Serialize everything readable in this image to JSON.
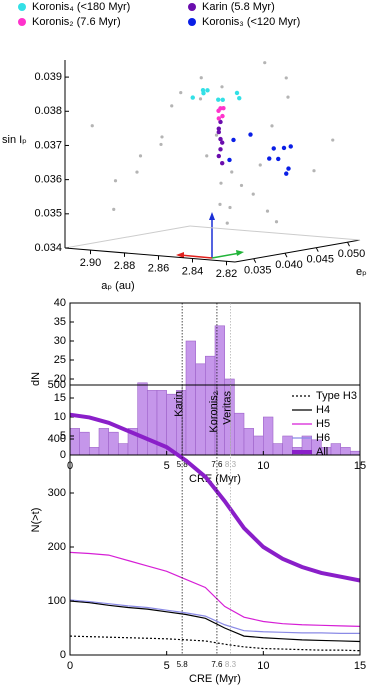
{
  "chart_data": [
    {
      "type": "scatter3d",
      "xlabel": "aₚ (au)",
      "ylabel": "eₚ",
      "zlabel": "sin Iₚ",
      "xlim": [
        2.815,
        2.915
      ],
      "ylim": [
        0.032,
        0.052
      ],
      "zlim": [
        0.034,
        0.0395
      ],
      "xticks": [
        {
          "value": 2.9,
          "label": "2.90"
        },
        2.88,
        2.86,
        2.84,
        2.82
      ],
      "yticks": [
        0.035,
        {
          "value": 0.04,
          "label": "0.040"
        },
        0.045,
        {
          "value": 0.05,
          "label": "0.050"
        }
      ],
      "zticks": [
        0.034,
        0.035,
        0.036,
        0.037,
        0.038,
        0.039
      ],
      "background": {
        "color": "#b4b4b4",
        "a": [
          2.83,
          2.85,
          2.88,
          2.9,
          2.86,
          2.84,
          2.82,
          2.87,
          2.89,
          2.91,
          2.85,
          2.83,
          2.88,
          2.86,
          2.9,
          2.84,
          2.82,
          2.87,
          2.89,
          2.91,
          2.85,
          2.83,
          2.88,
          2.86,
          2.84,
          2.9,
          2.87,
          2.82,
          2.89,
          2.85
        ],
        "e": [
          0.034,
          0.036,
          0.038,
          0.04,
          0.042,
          0.044,
          0.046,
          0.048,
          0.05,
          0.035,
          0.037,
          0.039,
          0.041,
          0.043,
          0.045,
          0.047,
          0.049,
          0.051,
          0.033,
          0.046,
          0.05,
          0.042,
          0.034,
          0.049,
          0.038,
          0.036,
          0.044,
          0.04,
          0.047,
          0.041
        ],
        "sin_i": [
          0.039,
          0.0385,
          0.0372,
          0.0365,
          0.0358,
          0.035,
          0.0362,
          0.0355,
          0.0348,
          0.0375,
          0.0368,
          0.0357,
          0.0384,
          0.0346,
          0.0378,
          0.0388,
          0.037,
          0.036,
          0.0352,
          0.0366,
          0.0381,
          0.0376,
          0.0363,
          0.0391,
          0.0353,
          0.0359,
          0.0371,
          0.0349,
          0.0386,
          0.0362
        ]
      },
      "series": [
        {
          "name": "Koronis₄ (<180 Myr)",
          "color": "#33e0e6",
          "a": [
            2.87,
            2.88,
            2.89,
            2.9,
            2.875,
            2.885,
            2.895,
            2.88
          ],
          "e": [
            0.045,
            0.047,
            0.048,
            0.05,
            0.049,
            0.046,
            0.047,
            0.05
          ],
          "sin_i": [
            0.0381,
            0.038,
            0.0382,
            0.0381,
            0.038,
            0.0382,
            0.038,
            0.0381
          ]
        },
        {
          "name": "Karin (5.8 Myr)",
          "color": "#6a0dad",
          "a": [
            2.875,
            2.876,
            2.874,
            2.875,
            2.876,
            2.874,
            2.875,
            2.876
          ],
          "e": [
            0.046,
            0.046,
            0.046,
            0.046,
            0.046,
            0.046,
            0.046,
            0.046
          ],
          "sin_i": [
            0.0374,
            0.0371,
            0.0368,
            0.0366,
            0.0364,
            0.0362,
            0.0369,
            0.0372
          ]
        },
        {
          "name": "Koronis₂ (7.6 Myr)",
          "color": "#ff33cc",
          "a": [
            2.875,
            2.878,
            2.872,
            2.876,
            2.874
          ],
          "e": [
            0.046,
            0.0465,
            0.0455,
            0.046,
            0.0462
          ],
          "sin_i": [
            0.0378,
            0.0377,
            0.0376,
            0.0375,
            0.0378
          ]
        },
        {
          "name": "Koronis₃ (<120 Myr)",
          "color": "#0a1ee6",
          "a": [
            2.83,
            2.84,
            2.85,
            2.86,
            2.835,
            2.845,
            2.855,
            2.84,
            2.83,
            2.85
          ],
          "e": [
            0.043,
            0.045,
            0.047,
            0.044,
            0.046,
            0.048,
            0.042,
            0.047,
            0.045,
            0.044
          ],
          "sin_i": [
            0.0366,
            0.0368,
            0.0364,
            0.037,
            0.0362,
            0.0367,
            0.0365,
            0.036,
            0.0369,
            0.0372
          ]
        }
      ]
    },
    {
      "type": "histogram",
      "xlabel": "CRE (Myr)",
      "ylabel": "dN",
      "color": "#c596ea",
      "edge": "#9d62c9",
      "bins": [
        0,
        0.5,
        1,
        1.5,
        2,
        2.5,
        3,
        3.5,
        4,
        4.5,
        5,
        5.5,
        6,
        6.5,
        7,
        7.5,
        8,
        8.5,
        9,
        9.5,
        10,
        10.5,
        11,
        11.5,
        12,
        12.5,
        13,
        13.5,
        14,
        14.5,
        15
      ],
      "values": [
        7,
        6,
        2,
        7,
        6,
        3,
        7,
        19,
        17,
        17,
        16,
        17,
        30,
        24,
        26,
        34,
        20,
        11,
        7,
        5,
        10,
        3,
        5,
        2,
        5,
        4,
        2,
        3,
        2,
        1
      ],
      "xlim": [
        0,
        15
      ],
      "ylim": [
        0,
        40
      ],
      "xticks": [
        0,
        5,
        10,
        15
      ],
      "yticks": [
        0,
        5,
        10,
        15,
        20,
        25,
        30,
        35,
        40
      ],
      "markers": [
        5.8,
        7.6,
        8.3
      ],
      "marker_colors": [
        "#000",
        "#000",
        "#aaa"
      ]
    },
    {
      "type": "line",
      "xlabel": "CRE (Myr)",
      "ylabel": "N(>t)",
      "x": [
        0,
        1,
        2,
        3,
        4,
        5,
        6,
        7,
        8,
        9,
        10,
        11,
        12,
        13,
        14,
        15
      ],
      "xlim": [
        0,
        15
      ],
      "ylim": [
        0,
        500
      ],
      "xticks": [
        0,
        5,
        10,
        15
      ],
      "yticks": [
        0,
        100,
        200,
        300,
        400,
        500
      ],
      "markers": [
        5.8,
        7.6,
        8.3
      ],
      "marker_colors": [
        "#000",
        "#000",
        "#aaa"
      ],
      "marker_names": [
        "Karin",
        "Koronis₂",
        "Veritas"
      ],
      "series": [
        {
          "name": "Type H3",
          "color": "#000",
          "width": 1.2,
          "dashed": true,
          "values": [
            35,
            34,
            33,
            32,
            31,
            30,
            28,
            26,
            20,
            15,
            12,
            11,
            10,
            9,
            9,
            8
          ]
        },
        {
          "name": "H4",
          "color": "#000",
          "width": 1.2,
          "values": [
            100,
            97,
            92,
            88,
            85,
            80,
            75,
            68,
            50,
            35,
            32,
            30,
            28,
            27,
            26,
            25
          ]
        },
        {
          "name": "H5",
          "color": "#d61fd6",
          "width": 1.2,
          "values": [
            190,
            188,
            185,
            175,
            165,
            155,
            140,
            125,
            90,
            70,
            62,
            58,
            56,
            55,
            54,
            53
          ]
        },
        {
          "name": "H6",
          "color": "#8a8ae6",
          "width": 1.2,
          "values": [
            102,
            99,
            95,
            91,
            88,
            83,
            78,
            72,
            56,
            45,
            43,
            42,
            41,
            41,
            40,
            40
          ]
        },
        {
          "name": "All",
          "color": "#8a1fc9",
          "width": 4,
          "values": [
            445,
            440,
            430,
            415,
            400,
            385,
            360,
            330,
            285,
            235,
            200,
            178,
            163,
            152,
            145,
            138
          ]
        }
      ]
    }
  ]
}
